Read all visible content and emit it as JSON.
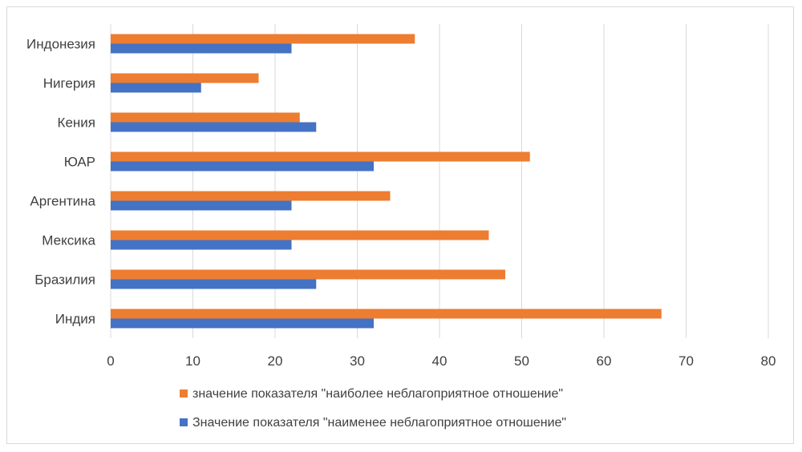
{
  "chart_data": {
    "type": "bar",
    "orientation": "horizontal",
    "categories": [
      "Индонезия",
      "Нигерия",
      "Кения",
      "ЮАР",
      "Аргентина",
      "Мексика",
      "Бразилия",
      "Индия"
    ],
    "series": [
      {
        "name": "значение показателя \"наиболее неблагоприятное отношение\"",
        "color": "#ED7D31",
        "values": [
          37,
          18,
          23,
          51,
          34,
          46,
          48,
          67
        ]
      },
      {
        "name": "Значение показателя \"наименее неблагоприятное отношение\"",
        "color": "#4472C4",
        "values": [
          22,
          11,
          25,
          32,
          22,
          22,
          25,
          32
        ]
      }
    ],
    "xlim": [
      0,
      80
    ],
    "xticks": [
      0,
      10,
      20,
      30,
      40,
      50,
      60,
      70,
      80
    ],
    "grid": true,
    "legend_position": "bottom",
    "title": "",
    "xlabel": "",
    "ylabel": ""
  }
}
